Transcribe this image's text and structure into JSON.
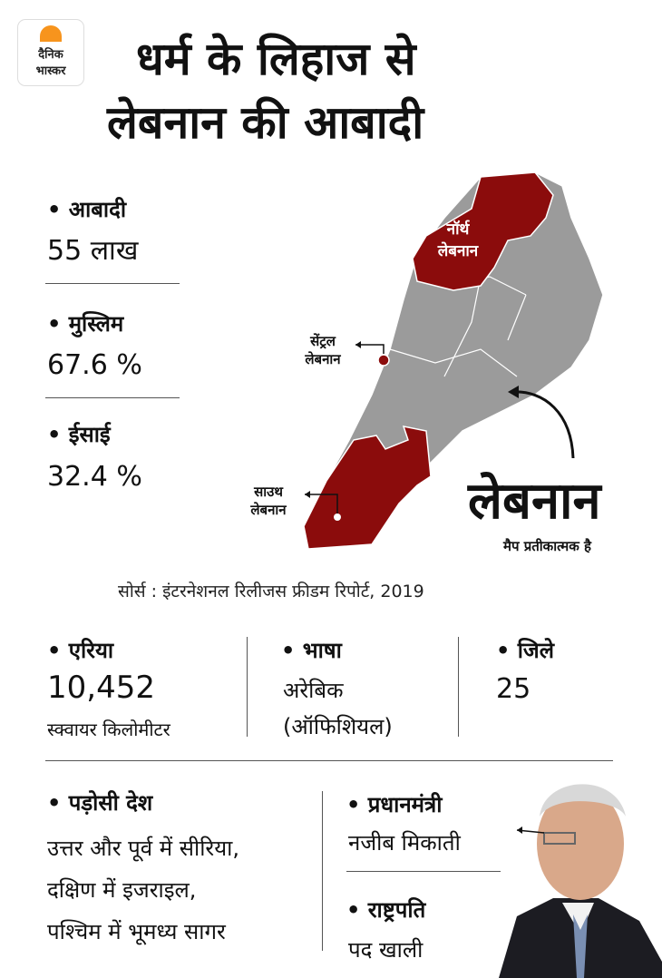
{
  "brand": {
    "line1": "दैनिक",
    "line2": "भास्कर",
    "accent": "#f7941d"
  },
  "title": {
    "line1": "धर्म के लिहाज से",
    "line2": "लेबनान की आबादी"
  },
  "stats": [
    {
      "label": "• आबादी",
      "value": "55 लाख"
    },
    {
      "label": "• मुस्लिम",
      "value": "67.6 %"
    },
    {
      "label": "• ईसाई",
      "value": "32.4 %"
    }
  ],
  "map": {
    "north_label": [
      "नॉर्थ",
      "लेबनान"
    ],
    "central_label": [
      "सेंट्रल",
      "लेबनान"
    ],
    "south_label": [
      "साउथ",
      "लेबनान"
    ],
    "country": "लेबनान",
    "note": "मैप प्रतीकात्मक है",
    "region_color": "#8b0c0c",
    "land_color": "#9b9b9b"
  },
  "source": "सोर्स : इंटरनेशनल रिलीजस फ्रीडम रिपोर्ट, 2019",
  "facts": {
    "area": {
      "label": "• एरिया",
      "value": "10,452",
      "unit": "स्क्वायर किलोमीटर"
    },
    "language": {
      "label": "• भाषा",
      "line1": "अरेबिक",
      "line2": "(ऑफिशियल)"
    },
    "districts": {
      "label": "• जिले",
      "value": "25"
    }
  },
  "neighbors": {
    "label": "• पड़ोसी देश",
    "lines": [
      "उत्तर और पूर्व में सीरिया,",
      "दक्षिण में इजराइल,",
      "पश्चिम में भूमध्य सागर"
    ]
  },
  "pm": {
    "label": "• प्रधानमंत्री",
    "value": "नजीब मिकाती"
  },
  "president": {
    "label": "• राष्ट्रपति",
    "value": "पद खाली"
  }
}
